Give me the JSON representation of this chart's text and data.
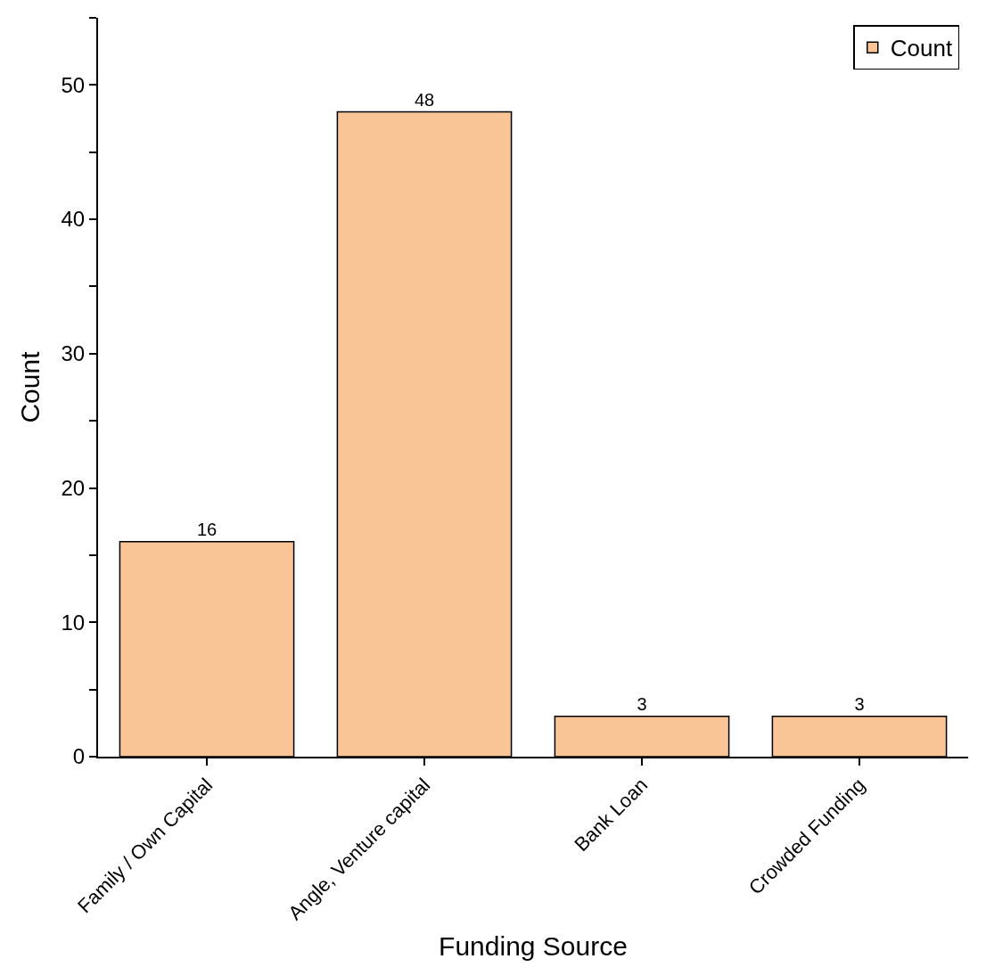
{
  "chart_data": {
    "type": "bar",
    "xlabel": "Funding Source",
    "ylabel": "Count",
    "categories": [
      "Family / Own Capital",
      "Angle, Venture capital",
      "Bank Loan",
      "Crowded Funding"
    ],
    "series": [
      {
        "name": "Count",
        "color": "#f9c597",
        "values": [
          16,
          48,
          3,
          3
        ]
      }
    ],
    "ylim": [
      0,
      55
    ],
    "yticks": [
      0,
      {
        "value": 5,
        "label": null
      },
      10,
      {
        "value": 15,
        "label": null
      },
      20,
      {
        "value": 25,
        "label": null
      },
      30,
      {
        "value": 35,
        "label": null
      },
      40,
      {
        "value": 45,
        "label": null
      },
      50,
      {
        "value": 55,
        "label": null
      }
    ],
    "data_labels": true,
    "legend": "top right"
  }
}
